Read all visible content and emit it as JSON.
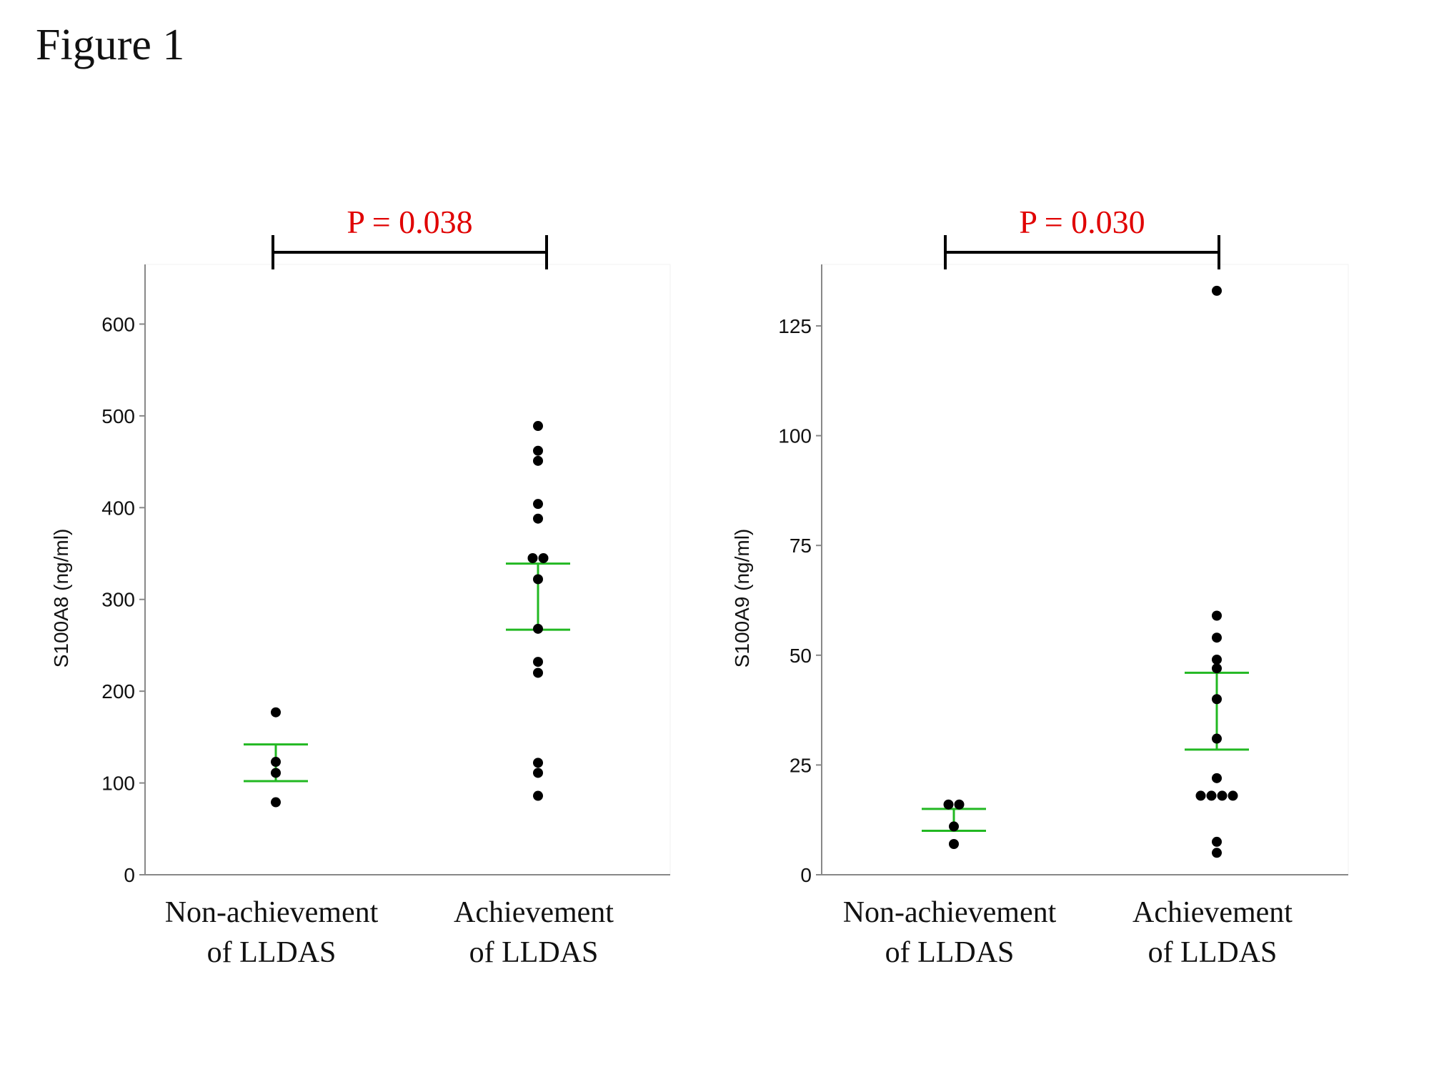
{
  "figure_title": "Figure 1",
  "colors": {
    "points": "#000000",
    "error_bars": "#22b822",
    "p_value": "#e00000",
    "axis": "#888888",
    "bracket": "#000000"
  },
  "chart_data": [
    {
      "type": "scatter",
      "ylabel": "S100A8 (ng/ml)",
      "ylim": [
        0,
        665
      ],
      "yticks": [
        0,
        100,
        200,
        300,
        400,
        500,
        600
      ],
      "categories": [
        [
          "Non-achievement",
          "of LLDAS"
        ],
        [
          "Achievement",
          "of LLDAS"
        ]
      ],
      "groups": [
        {
          "points": [
            177,
            123,
            111,
            79
          ],
          "error_bar": [
            102,
            142
          ]
        },
        {
          "points": [
            489,
            462,
            451,
            404,
            388,
            345,
            345,
            322,
            268,
            232,
            220,
            122,
            111,
            86
          ],
          "error_bar": [
            267,
            339
          ]
        }
      ],
      "p_value": "P = 0.038"
    },
    {
      "type": "scatter",
      "ylabel": "S100A9 (ng/ml)",
      "ylim": [
        0,
        139
      ],
      "yticks": [
        0,
        25,
        50,
        75,
        100,
        125
      ],
      "categories": [
        [
          "Non-achievement",
          "of LLDAS"
        ],
        [
          "Achievement",
          "of LLDAS"
        ]
      ],
      "groups": [
        {
          "points": [
            16,
            16,
            11,
            7
          ],
          "error_bar": [
            10,
            15
          ]
        },
        {
          "points": [
            133,
            59,
            54,
            49,
            47,
            40,
            31,
            22,
            18,
            18,
            18,
            18,
            7.5,
            5
          ],
          "error_bar": [
            28.5,
            46
          ]
        }
      ],
      "p_value": "P = 0.030"
    }
  ]
}
